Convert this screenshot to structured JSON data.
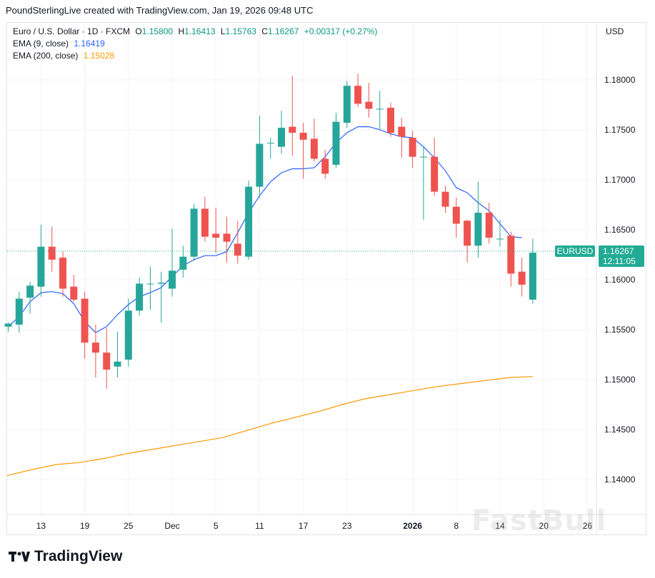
{
  "header": {
    "caption": "PoundSterlingLive created with TradingView.com, Jan 19, 2026 09:48 UTC"
  },
  "legend": {
    "symbol_line": "Euro / U.S. Dollar · 1D · FXCM",
    "o_label": "O",
    "o_value": "1.15800",
    "h_label": "H",
    "h_value": "1.16413",
    "l_label": "L",
    "l_value": "1.15763",
    "c_label": "C",
    "c_value": "1.16267",
    "change": "+0.00317 (+0.27%)",
    "ema9_label": "EMA (9, close)",
    "ema9_value": "1.16419",
    "ema200_label": "EMA (200, close)",
    "ema200_value": "1.15028"
  },
  "price_scale": {
    "currency": "USD",
    "last_price": "1.16267",
    "countdown": "12:11:05",
    "symbol": "EURUSD"
  },
  "watermark": "FastBull",
  "brand": "TradingView",
  "colors": {
    "up": "#26a69a",
    "down": "#ef5350",
    "ema9": "#2962ff",
    "ema200": "#ff9800",
    "grid": "#f0f3fa",
    "text": "#131722"
  },
  "chart_data": {
    "type": "candlestick",
    "title": "Euro / U.S. Dollar · 1D · FXCM",
    "y_ticks": [
      1.14,
      1.145,
      1.15,
      1.155,
      1.16,
      1.165,
      1.17,
      1.175,
      1.18
    ],
    "y_tick_labels": [
      "1.14000",
      "1.14500",
      "1.15000",
      "1.15500",
      "1.16000",
      "1.16500",
      "1.17000",
      "1.17500",
      "1.18000"
    ],
    "ylim": [
      1.1365,
      1.1857
    ],
    "x_tick_labels": [
      {
        "label": "13",
        "bar": 3,
        "bold": false
      },
      {
        "label": "19",
        "bar": 7,
        "bold": false
      },
      {
        "label": "25",
        "bar": 11,
        "bold": false
      },
      {
        "label": "Dec",
        "bar": 15,
        "bold": false
      },
      {
        "label": "5",
        "bar": 19,
        "bold": false
      },
      {
        "label": "11",
        "bar": 23,
        "bold": false
      },
      {
        "label": "17",
        "bar": 27,
        "bold": false
      },
      {
        "label": "23",
        "bar": 31,
        "bold": false
      },
      {
        "label": "2026",
        "bar": 37,
        "bold": true
      },
      {
        "label": "8",
        "bar": 41,
        "bold": false
      },
      {
        "label": "14",
        "bar": 45,
        "bold": false
      },
      {
        "label": "20",
        "bar": 49,
        "bold": false
      },
      {
        "label": "26",
        "bar": 53,
        "bold": false
      }
    ],
    "candles": [
      {
        "o": 1.1553,
        "h": 1.1557,
        "l": 1.1548,
        "c": 1.1556
      },
      {
        "o": 1.1555,
        "h": 1.1588,
        "l": 1.1547,
        "c": 1.1581
      },
      {
        "o": 1.1582,
        "h": 1.1598,
        "l": 1.1566,
        "c": 1.1594
      },
      {
        "o": 1.1593,
        "h": 1.1655,
        "l": 1.1583,
        "c": 1.1633
      },
      {
        "o": 1.1633,
        "h": 1.1653,
        "l": 1.1608,
        "c": 1.162
      },
      {
        "o": 1.1622,
        "h": 1.1628,
        "l": 1.1583,
        "c": 1.1591
      },
      {
        "o": 1.1593,
        "h": 1.1605,
        "l": 1.1578,
        "c": 1.158
      },
      {
        "o": 1.1581,
        "h": 1.1588,
        "l": 1.1521,
        "c": 1.1537
      },
      {
        "o": 1.1537,
        "h": 1.1555,
        "l": 1.1502,
        "c": 1.1527
      },
      {
        "o": 1.1527,
        "h": 1.1552,
        "l": 1.1491,
        "c": 1.151
      },
      {
        "o": 1.1513,
        "h": 1.1548,
        "l": 1.1502,
        "c": 1.1518
      },
      {
        "o": 1.152,
        "h": 1.1581,
        "l": 1.1513,
        "c": 1.1569
      },
      {
        "o": 1.1569,
        "h": 1.1602,
        "l": 1.1564,
        "c": 1.1596
      },
      {
        "o": 1.1596,
        "h": 1.1613,
        "l": 1.157,
        "c": 1.1596
      },
      {
        "o": 1.1596,
        "h": 1.1608,
        "l": 1.1557,
        "c": 1.1597
      },
      {
        "o": 1.1591,
        "h": 1.1651,
        "l": 1.1583,
        "c": 1.1609
      },
      {
        "o": 1.161,
        "h": 1.1634,
        "l": 1.1602,
        "c": 1.1623
      },
      {
        "o": 1.1623,
        "h": 1.1676,
        "l": 1.1619,
        "c": 1.1671
      },
      {
        "o": 1.1671,
        "h": 1.1683,
        "l": 1.1638,
        "c": 1.1643
      },
      {
        "o": 1.1646,
        "h": 1.1672,
        "l": 1.1627,
        "c": 1.1642
      },
      {
        "o": 1.1646,
        "h": 1.1663,
        "l": 1.1617,
        "c": 1.1638
      },
      {
        "o": 1.1636,
        "h": 1.1659,
        "l": 1.1616,
        "c": 1.1624
      },
      {
        "o": 1.1623,
        "h": 1.1699,
        "l": 1.162,
        "c": 1.1693
      },
      {
        "o": 1.1693,
        "h": 1.1764,
        "l": 1.1682,
        "c": 1.1736
      },
      {
        "o": 1.1737,
        "h": 1.1742,
        "l": 1.1721,
        "c": 1.1737
      },
      {
        "o": 1.1733,
        "h": 1.1769,
        "l": 1.1726,
        "c": 1.1752
      },
      {
        "o": 1.1753,
        "h": 1.1804,
        "l": 1.1724,
        "c": 1.1747
      },
      {
        "o": 1.1747,
        "h": 1.1757,
        "l": 1.1701,
        "c": 1.174
      },
      {
        "o": 1.1741,
        "h": 1.1761,
        "l": 1.1718,
        "c": 1.1721
      },
      {
        "o": 1.1721,
        "h": 1.173,
        "l": 1.1701,
        "c": 1.1706
      },
      {
        "o": 1.1715,
        "h": 1.1767,
        "l": 1.1712,
        "c": 1.1758
      },
      {
        "o": 1.1757,
        "h": 1.1799,
        "l": 1.1752,
        "c": 1.1794
      },
      {
        "o": 1.1794,
        "h": 1.1806,
        "l": 1.1773,
        "c": 1.1776
      },
      {
        "o": 1.1778,
        "h": 1.1797,
        "l": 1.1762,
        "c": 1.1771
      },
      {
        "o": 1.1771,
        "h": 1.1789,
        "l": 1.175,
        "c": 1.1771
      },
      {
        "o": 1.1772,
        "h": 1.1777,
        "l": 1.1743,
        "c": 1.1747
      },
      {
        "o": 1.1753,
        "h": 1.1762,
        "l": 1.1722,
        "c": 1.1743
      },
      {
        "o": 1.1742,
        "h": 1.1749,
        "l": 1.1712,
        "c": 1.1723
      },
      {
        "o": 1.1723,
        "h": 1.1734,
        "l": 1.166,
        "c": 1.1723
      },
      {
        "o": 1.1723,
        "h": 1.1742,
        "l": 1.1684,
        "c": 1.1688
      },
      {
        "o": 1.1688,
        "h": 1.1694,
        "l": 1.1667,
        "c": 1.1673
      },
      {
        "o": 1.1673,
        "h": 1.1682,
        "l": 1.1642,
        "c": 1.1656
      },
      {
        "o": 1.1659,
        "h": 1.166,
        "l": 1.1617,
        "c": 1.1634
      },
      {
        "o": 1.1634,
        "h": 1.1698,
        "l": 1.1622,
        "c": 1.1667
      },
      {
        "o": 1.1667,
        "h": 1.1677,
        "l": 1.1636,
        "c": 1.1642
      },
      {
        "o": 1.1641,
        "h": 1.166,
        "l": 1.1633,
        "c": 1.1641
      },
      {
        "o": 1.1644,
        "h": 1.1648,
        "l": 1.1593,
        "c": 1.1606
      },
      {
        "o": 1.1608,
        "h": 1.1622,
        "l": 1.1583,
        "c": 1.1595
      },
      {
        "o": 1.158,
        "h": 1.1641,
        "l": 1.1576,
        "c": 1.1627
      }
    ],
    "ema9": [
      1.1553,
      1.1563,
      1.1578,
      1.1587,
      1.1588,
      1.1586,
      1.1576,
      1.1558,
      1.1547,
      1.1553,
      1.1565,
      1.1575,
      1.1583,
      1.1587,
      1.1592,
      1.1603,
      1.1614,
      1.162,
      1.1624,
      1.1624,
      1.1628,
      1.1647,
      1.1667,
      1.1684,
      1.1698,
      1.1707,
      1.1711,
      1.1711,
      1.1712,
      1.1723,
      1.1737,
      1.1747,
      1.1753,
      1.1753,
      1.175,
      1.1746,
      1.1743,
      1.1742,
      1.1733,
      1.1722,
      1.1709,
      1.1692,
      1.1687,
      1.1677,
      1.1669,
      1.1656,
      1.1643,
      1.1642
    ],
    "ema200": [
      1.1404,
      1.141,
      1.1415,
      1.1417,
      1.1421,
      1.1426,
      1.143,
      1.1434,
      1.1438,
      1.1442,
      1.1449,
      1.1456,
      1.1462,
      1.1468,
      1.1475,
      1.1481,
      1.1485,
      1.1489,
      1.1493,
      1.1496,
      1.1499,
      1.1502,
      1.1503
    ]
  }
}
